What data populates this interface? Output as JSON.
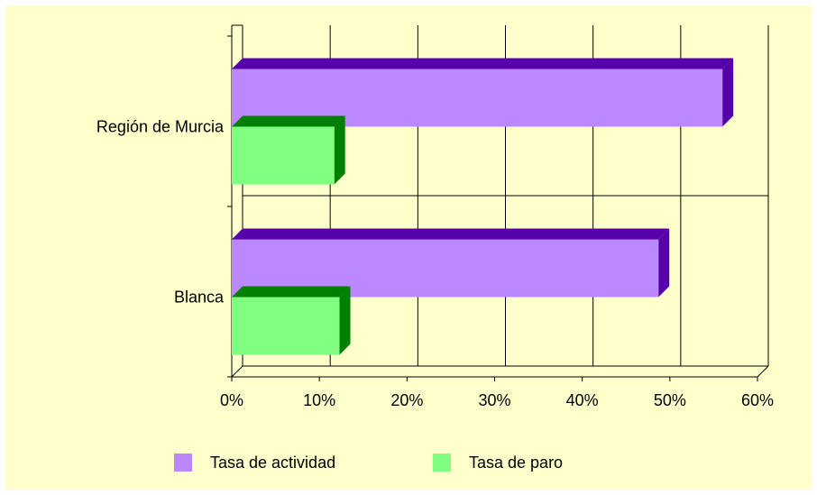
{
  "chart_data": {
    "type": "bar",
    "orientation": "horizontal",
    "style": "3d",
    "categories": [
      "Región de Murcia",
      "Blanca"
    ],
    "series": [
      {
        "name": "Tasa de actividad",
        "values": [
          56,
          48.7
        ],
        "color": "#bb88ff",
        "dark": "#5500aa"
      },
      {
        "name": "Tasa de paro",
        "values": [
          11.7,
          12.3
        ],
        "color": "#80ff80",
        "dark": "#008000"
      }
    ],
    "xlim": [
      0,
      60
    ],
    "xticks": [
      0,
      10,
      20,
      30,
      40,
      50,
      60
    ],
    "xtick_labels": [
      "0%",
      "10%",
      "20%",
      "30%",
      "40%",
      "50%",
      "60%"
    ],
    "grid": true,
    "legend_position": "bottom",
    "background": "#ffffcc"
  }
}
